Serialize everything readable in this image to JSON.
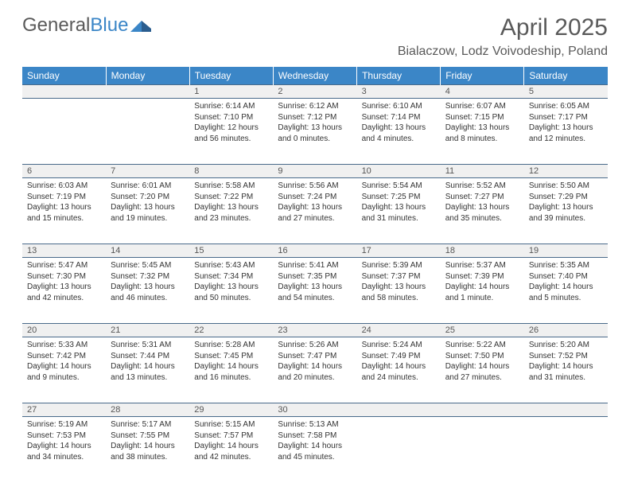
{
  "brand": {
    "part1": "General",
    "part2": "Blue"
  },
  "title": "April 2025",
  "subtitle": "Bialaczow, Lodz Voivodeship, Poland",
  "colors": {
    "header_bg": "#3b86c7",
    "header_text": "#ffffff",
    "daynum_bg": "#f0f0f0",
    "daynum_border": "#4a6a8a",
    "body_text": "#333333",
    "title_text": "#5a5a5a"
  },
  "weekdays": [
    "Sunday",
    "Monday",
    "Tuesday",
    "Wednesday",
    "Thursday",
    "Friday",
    "Saturday"
  ],
  "weeks": [
    [
      null,
      null,
      {
        "n": "1",
        "sr": "6:14 AM",
        "ss": "7:10 PM",
        "dl": "12 hours and 56 minutes."
      },
      {
        "n": "2",
        "sr": "6:12 AM",
        "ss": "7:12 PM",
        "dl": "13 hours and 0 minutes."
      },
      {
        "n": "3",
        "sr": "6:10 AM",
        "ss": "7:14 PM",
        "dl": "13 hours and 4 minutes."
      },
      {
        "n": "4",
        "sr": "6:07 AM",
        "ss": "7:15 PM",
        "dl": "13 hours and 8 minutes."
      },
      {
        "n": "5",
        "sr": "6:05 AM",
        "ss": "7:17 PM",
        "dl": "13 hours and 12 minutes."
      }
    ],
    [
      {
        "n": "6",
        "sr": "6:03 AM",
        "ss": "7:19 PM",
        "dl": "13 hours and 15 minutes."
      },
      {
        "n": "7",
        "sr": "6:01 AM",
        "ss": "7:20 PM",
        "dl": "13 hours and 19 minutes."
      },
      {
        "n": "8",
        "sr": "5:58 AM",
        "ss": "7:22 PM",
        "dl": "13 hours and 23 minutes."
      },
      {
        "n": "9",
        "sr": "5:56 AM",
        "ss": "7:24 PM",
        "dl": "13 hours and 27 minutes."
      },
      {
        "n": "10",
        "sr": "5:54 AM",
        "ss": "7:25 PM",
        "dl": "13 hours and 31 minutes."
      },
      {
        "n": "11",
        "sr": "5:52 AM",
        "ss": "7:27 PM",
        "dl": "13 hours and 35 minutes."
      },
      {
        "n": "12",
        "sr": "5:50 AM",
        "ss": "7:29 PM",
        "dl": "13 hours and 39 minutes."
      }
    ],
    [
      {
        "n": "13",
        "sr": "5:47 AM",
        "ss": "7:30 PM",
        "dl": "13 hours and 42 minutes."
      },
      {
        "n": "14",
        "sr": "5:45 AM",
        "ss": "7:32 PM",
        "dl": "13 hours and 46 minutes."
      },
      {
        "n": "15",
        "sr": "5:43 AM",
        "ss": "7:34 PM",
        "dl": "13 hours and 50 minutes."
      },
      {
        "n": "16",
        "sr": "5:41 AM",
        "ss": "7:35 PM",
        "dl": "13 hours and 54 minutes."
      },
      {
        "n": "17",
        "sr": "5:39 AM",
        "ss": "7:37 PM",
        "dl": "13 hours and 58 minutes."
      },
      {
        "n": "18",
        "sr": "5:37 AM",
        "ss": "7:39 PM",
        "dl": "14 hours and 1 minute."
      },
      {
        "n": "19",
        "sr": "5:35 AM",
        "ss": "7:40 PM",
        "dl": "14 hours and 5 minutes."
      }
    ],
    [
      {
        "n": "20",
        "sr": "5:33 AM",
        "ss": "7:42 PM",
        "dl": "14 hours and 9 minutes."
      },
      {
        "n": "21",
        "sr": "5:31 AM",
        "ss": "7:44 PM",
        "dl": "14 hours and 13 minutes."
      },
      {
        "n": "22",
        "sr": "5:28 AM",
        "ss": "7:45 PM",
        "dl": "14 hours and 16 minutes."
      },
      {
        "n": "23",
        "sr": "5:26 AM",
        "ss": "7:47 PM",
        "dl": "14 hours and 20 minutes."
      },
      {
        "n": "24",
        "sr": "5:24 AM",
        "ss": "7:49 PM",
        "dl": "14 hours and 24 minutes."
      },
      {
        "n": "25",
        "sr": "5:22 AM",
        "ss": "7:50 PM",
        "dl": "14 hours and 27 minutes."
      },
      {
        "n": "26",
        "sr": "5:20 AM",
        "ss": "7:52 PM",
        "dl": "14 hours and 31 minutes."
      }
    ],
    [
      {
        "n": "27",
        "sr": "5:19 AM",
        "ss": "7:53 PM",
        "dl": "14 hours and 34 minutes."
      },
      {
        "n": "28",
        "sr": "5:17 AM",
        "ss": "7:55 PM",
        "dl": "14 hours and 38 minutes."
      },
      {
        "n": "29",
        "sr": "5:15 AM",
        "ss": "7:57 PM",
        "dl": "14 hours and 42 minutes."
      },
      {
        "n": "30",
        "sr": "5:13 AM",
        "ss": "7:58 PM",
        "dl": "14 hours and 45 minutes."
      },
      null,
      null,
      null
    ]
  ],
  "labels": {
    "sunrise": "Sunrise:",
    "sunset": "Sunset:",
    "daylight": "Daylight:"
  }
}
